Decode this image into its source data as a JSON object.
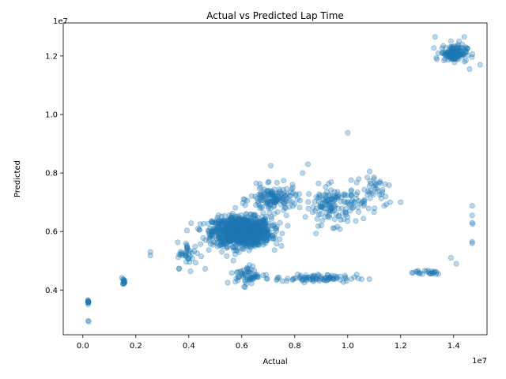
{
  "chart_data": {
    "type": "scatter",
    "title": "Actual vs Predicted Lap Time",
    "xlabel": "Actual",
    "ylabel": "Predicted",
    "x_offset_label": "1e7",
    "y_offset_label": "1e7",
    "xlim": [
      -0.074,
      1.526
    ],
    "ylim": [
      0.247,
      1.313
    ],
    "xticks": [
      0.0,
      0.2,
      0.4,
      0.6,
      0.8,
      1.0,
      1.2,
      1.4
    ],
    "xtick_labels": [
      "0.0",
      "0.2",
      "0.4",
      "0.6",
      "0.8",
      "1.0",
      "1.2",
      "1.4"
    ],
    "yticks": [
      0.4,
      0.6,
      0.8,
      1.0,
      1.2
    ],
    "ytick_labels": [
      "0.4",
      "0.6",
      "0.8",
      "1.0",
      "1.2"
    ],
    "grid": false,
    "color": "#1f77b4",
    "alpha": 0.3,
    "units_note": "values in units of 1e7",
    "clusters": [
      {
        "x_center": 0.6,
        "y_center": 0.6,
        "x_spread": 0.1,
        "y_spread": 0.045,
        "count": 1100
      },
      {
        "x_center": 0.95,
        "y_center": 0.69,
        "x_spread": 0.1,
        "y_spread": 0.06,
        "count": 150
      },
      {
        "x_center": 0.72,
        "y_center": 0.71,
        "x_spread": 0.08,
        "y_spread": 0.04,
        "count": 150
      },
      {
        "x_center": 1.4,
        "y_center": 1.21,
        "x_spread": 0.045,
        "y_spread": 0.025,
        "count": 140
      },
      {
        "x_center": 0.88,
        "y_center": 0.44,
        "x_spread": 0.14,
        "y_spread": 0.012,
        "count": 90
      },
      {
        "x_center": 0.62,
        "y_center": 0.45,
        "x_spread": 0.04,
        "y_spread": 0.03,
        "count": 60
      },
      {
        "x_center": 1.3,
        "y_center": 0.46,
        "x_spread": 0.06,
        "y_spread": 0.01,
        "count": 25
      },
      {
        "x_center": 1.1,
        "y_center": 0.75,
        "x_spread": 0.06,
        "y_spread": 0.06,
        "count": 40
      },
      {
        "x_center": 0.4,
        "y_center": 0.52,
        "x_spread": 0.04,
        "y_spread": 0.04,
        "count": 40
      },
      {
        "x_center": 0.155,
        "y_center": 0.43,
        "x_spread": 0.004,
        "y_spread": 0.01,
        "count": 14
      },
      {
        "x_center": 0.02,
        "y_center": 0.36,
        "x_spread": 0.002,
        "y_spread": 0.01,
        "count": 10
      }
    ],
    "points": [
      [
        0.02,
        0.295
      ],
      [
        0.022,
        0.292
      ],
      [
        0.255,
        0.53
      ],
      [
        0.255,
        0.518
      ],
      [
        1.0,
        0.937
      ],
      [
        1.47,
        0.655
      ],
      [
        1.47,
        0.688
      ],
      [
        1.47,
        0.63
      ],
      [
        1.472,
        0.625
      ],
      [
        1.47,
        0.56
      ],
      [
        1.47,
        0.565
      ],
      [
        1.39,
        0.51
      ],
      [
        1.41,
        0.49
      ],
      [
        1.42,
        1.25
      ],
      [
        1.39,
        1.25
      ],
      [
        1.33,
        1.265
      ],
      [
        1.44,
        1.265
      ],
      [
        1.5,
        1.17
      ],
      [
        1.46,
        1.155
      ],
      [
        0.83,
        0.8
      ],
      [
        0.85,
        0.83
      ],
      [
        0.71,
        0.825
      ],
      [
        1.16,
        0.7
      ],
      [
        1.2,
        0.7
      ]
    ]
  }
}
